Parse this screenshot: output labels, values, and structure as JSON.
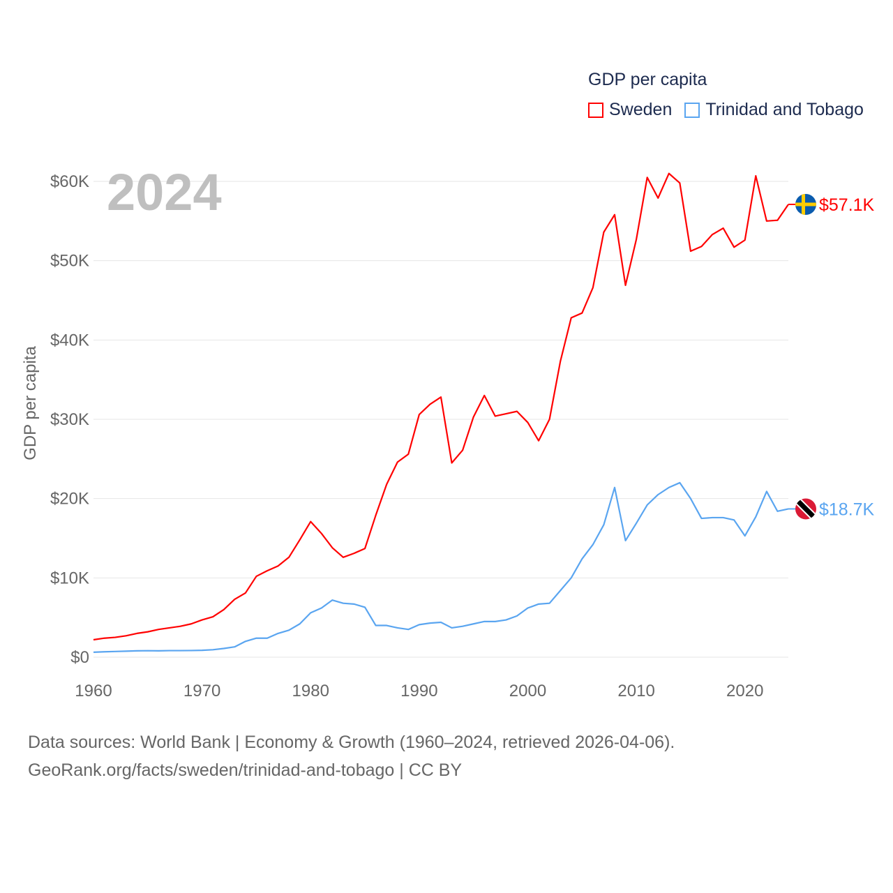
{
  "legend": {
    "title": "GDP per capita",
    "items": [
      {
        "name": "Sweden",
        "color": "#ff0000"
      },
      {
        "name": "Trinidad and Tobago",
        "color": "#5aa5f0"
      }
    ]
  },
  "year_label": "2024",
  "footer": {
    "line1": "Data sources: World Bank | Economy & Growth (1960–2024, retrieved 2026-04-06).",
    "line2": "GeoRank.org/facts/sweden/trinidad-and-tobago | CC BY"
  },
  "chart_data": {
    "type": "line",
    "title": "GDP per capita",
    "xlabel": "",
    "ylabel": "GDP per capita",
    "xlim": [
      1960,
      2024
    ],
    "ylim": [
      0,
      60000
    ],
    "x_ticks": [
      1960,
      1970,
      1980,
      1990,
      2000,
      2010,
      2020
    ],
    "x_tick_labels": [
      "1960",
      "1970",
      "1980",
      "1990",
      "2000",
      "2010",
      "2020"
    ],
    "y_ticks": [
      0,
      10000,
      20000,
      30000,
      40000,
      50000,
      60000
    ],
    "y_tick_labels": [
      "$0",
      "$10K",
      "$20K",
      "$30K",
      "$40K",
      "$50K",
      "$60K"
    ],
    "grid": true,
    "legend_position": "top-right",
    "x_start": 1960,
    "series": [
      {
        "name": "Sweden",
        "color": "#ff0000",
        "end_label": "$57.1K",
        "values": [
          2200,
          2400,
          2500,
          2700,
          3000,
          3200,
          3500,
          3700,
          3900,
          4200,
          4700,
          5100,
          6000,
          7300,
          8100,
          10200,
          10900,
          11500,
          12600,
          14800,
          17100,
          15600,
          13800,
          12600,
          13100,
          13700,
          17900,
          21800,
          24600,
          25600,
          30600,
          31900,
          32800,
          24500,
          26100,
          30300,
          33000,
          30400,
          30700,
          31000,
          29600,
          27300,
          30000,
          37300,
          42800,
          43400,
          46600,
          53600,
          55800,
          46900,
          52700,
          60500,
          57900,
          61000,
          59800,
          51200,
          51800,
          53300,
          54100,
          51700,
          52600,
          60700,
          55000,
          55100,
          57100
        ]
      },
      {
        "name": "Trinidad and Tobago",
        "color": "#5aa5f0",
        "end_label": "$18.7K",
        "values": [
          630,
          680,
          720,
          760,
          800,
          820,
          800,
          830,
          830,
          840,
          870,
          940,
          1100,
          1300,
          2000,
          2400,
          2400,
          3000,
          3400,
          4200,
          5600,
          6200,
          7200,
          6800,
          6700,
          6300,
          4000,
          4000,
          3700,
          3500,
          4100,
          4300,
          4400,
          3700,
          3900,
          4200,
          4500,
          4500,
          4700,
          5200,
          6200,
          6700,
          6800,
          8400,
          10000,
          12400,
          14200,
          16700,
          21400,
          14700,
          16900,
          19200,
          20500,
          21400,
          22000,
          20000,
          17500,
          17600,
          17600,
          17300,
          15300,
          17700,
          20900,
          18400,
          18700
        ]
      }
    ]
  }
}
